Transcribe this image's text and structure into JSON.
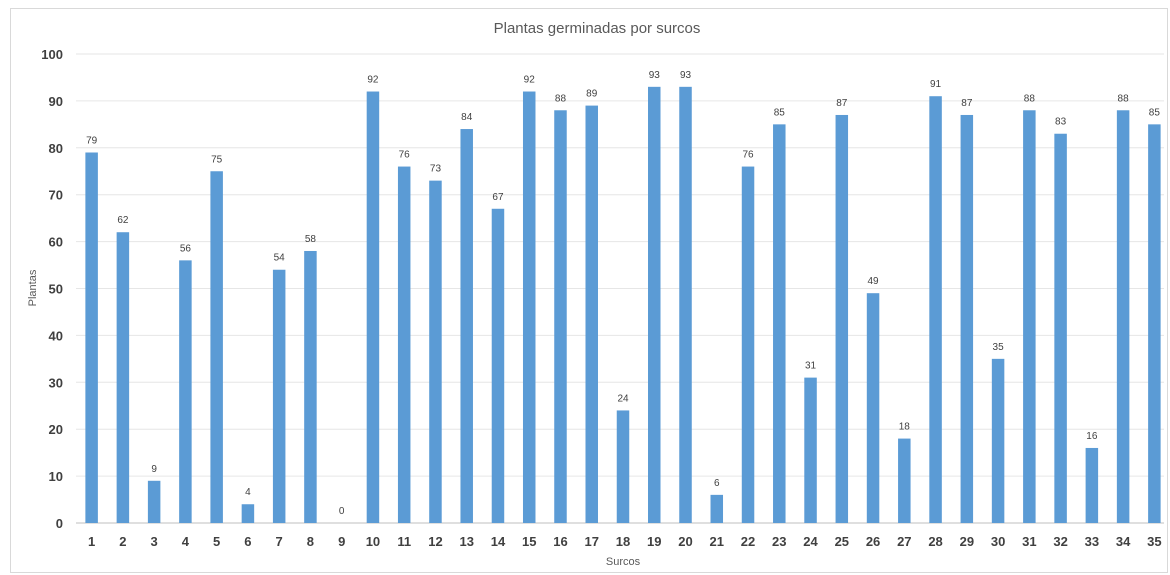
{
  "chart_data": {
    "type": "bar",
    "title": "Plantas germinadas por surcos",
    "xlabel": "Surcos",
    "ylabel": "Plantas",
    "ylim": [
      0,
      100
    ],
    "ytick_step": 10,
    "grid": true,
    "bar_color": "#5b9bd5",
    "categories": [
      "1",
      "2",
      "3",
      "4",
      "5",
      "6",
      "7",
      "8",
      "9",
      "10",
      "11",
      "12",
      "13",
      "14",
      "15",
      "16",
      "17",
      "18",
      "19",
      "20",
      "21",
      "22",
      "23",
      "24",
      "25",
      "26",
      "27",
      "28",
      "29",
      "30",
      "31",
      "32",
      "33",
      "34",
      "35"
    ],
    "values": [
      79,
      62,
      9,
      56,
      75,
      4,
      54,
      58,
      0,
      92,
      76,
      73,
      84,
      67,
      92,
      88,
      89,
      24,
      93,
      93,
      6,
      76,
      85,
      31,
      87,
      49,
      18,
      91,
      87,
      35,
      88,
      83,
      16,
      88,
      85
    ]
  }
}
